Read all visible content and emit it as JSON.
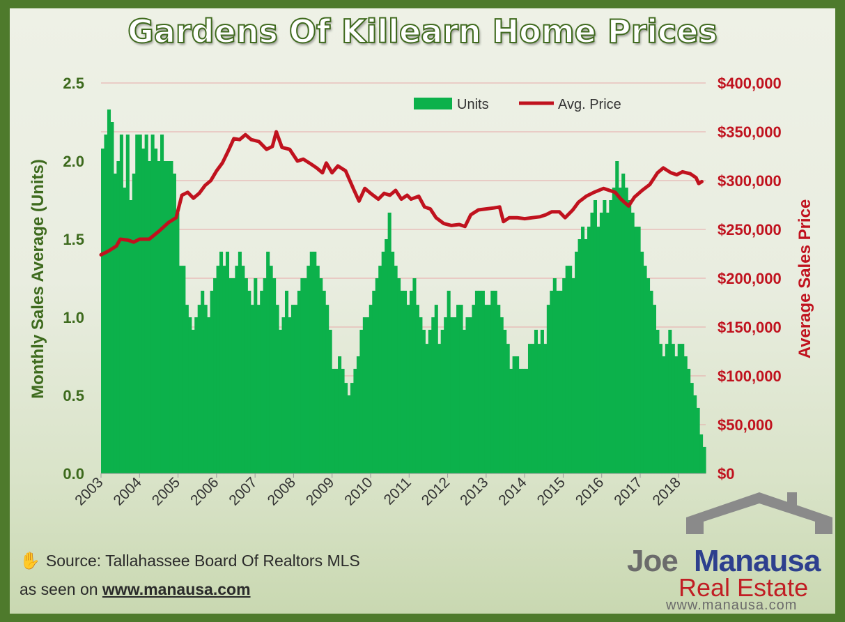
{
  "title": "Gardens Of Killearn Home Prices",
  "source_line": "Source: Tallahassee Board Of Realtors MLS",
  "seen_on_prefix": "as seen on",
  "seen_on_link": "www.manausa.com",
  "logo": {
    "joe": "Joe",
    "manausa": "Manausa",
    "real_estate": "Real Estate",
    "url": "www.manausa.com"
  },
  "colors": {
    "units": "#0cb14b",
    "price": "#c0121e",
    "left_axis": "#3d6a1d",
    "right_axis": "#c0121e",
    "frame": "#4e7a2c"
  },
  "chart_data": {
    "type": "bar+line",
    "title": "Gardens Of Killearn Home Prices",
    "ylabel_left": "Monthly Sales Average (Units)",
    "ylabel_right": "Average Sales Price",
    "y_left_lim": [
      0,
      2.5
    ],
    "y_left_ticks": [
      "0.0",
      "0.5",
      "1.0",
      "1.5",
      "2.0",
      "2.5"
    ],
    "y_right_lim": [
      0,
      400000
    ],
    "y_right_ticks": [
      "$0",
      "$50,000",
      "$100,000",
      "$150,000",
      "$200,000",
      "$250,000",
      "$300,000",
      "$350,000",
      "$400,000"
    ],
    "x_range": [
      2003.0,
      2018.7
    ],
    "x_ticks": [
      "2003",
      "2004",
      "2005",
      "2006",
      "2007",
      "2008",
      "2009",
      "2010",
      "2011",
      "2012",
      "2013",
      "2014",
      "2015",
      "2016",
      "2017",
      "2018"
    ],
    "legend": [
      "Units",
      "Avg. Price"
    ],
    "legend_position": "top",
    "series": [
      {
        "name": "Units",
        "kind": "bar",
        "values": [
          2.08,
          2.17,
          2.33,
          2.25,
          1.92,
          2.0,
          2.17,
          1.83,
          2.17,
          1.75,
          1.92,
          2.17,
          2.17,
          2.08,
          2.17,
          2.0,
          2.17,
          2.08,
          2.0,
          2.17,
          2.0,
          2.0,
          2.0,
          1.92,
          1.67,
          1.33,
          1.33,
          1.08,
          1.0,
          0.92,
          1.0,
          1.08,
          1.17,
          1.08,
          1.0,
          1.17,
          1.25,
          1.33,
          1.42,
          1.33,
          1.42,
          1.25,
          1.25,
          1.33,
          1.42,
          1.33,
          1.25,
          1.17,
          1.08,
          1.25,
          1.08,
          1.17,
          1.25,
          1.42,
          1.33,
          1.25,
          1.08,
          0.92,
          1.0,
          1.17,
          1.0,
          1.08,
          1.08,
          1.17,
          1.25,
          1.25,
          1.33,
          1.42,
          1.42,
          1.33,
          1.25,
          1.17,
          1.08,
          0.92,
          0.67,
          0.67,
          0.75,
          0.67,
          0.58,
          0.5,
          0.58,
          0.67,
          0.75,
          0.92,
          1.0,
          1.0,
          1.08,
          1.17,
          1.25,
          1.33,
          1.42,
          1.5,
          1.67,
          1.42,
          1.33,
          1.25,
          1.17,
          1.17,
          1.08,
          1.17,
          1.25,
          1.08,
          1.0,
          0.92,
          0.83,
          0.92,
          1.0,
          1.08,
          0.83,
          0.92,
          1.0,
          1.17,
          1.0,
          1.0,
          1.08,
          1.08,
          0.92,
          1.0,
          1.0,
          1.08,
          1.17,
          1.17,
          1.17,
          1.08,
          1.08,
          1.17,
          1.17,
          1.08,
          1.0,
          0.92,
          0.83,
          0.67,
          0.75,
          0.75,
          0.67,
          0.67,
          0.67,
          0.83,
          0.83,
          0.92,
          0.83,
          0.92,
          0.83,
          1.08,
          1.17,
          1.25,
          1.17,
          1.17,
          1.25,
          1.33,
          1.33,
          1.25,
          1.42,
          1.5,
          1.58,
          1.5,
          1.58,
          1.67,
          1.75,
          1.58,
          1.67,
          1.75,
          1.67,
          1.75,
          1.83,
          2.0,
          1.83,
          1.92,
          1.83,
          1.75,
          1.67,
          1.58,
          1.58,
          1.42,
          1.33,
          1.25,
          1.17,
          1.08,
          0.92,
          0.83,
          0.75,
          0.83,
          0.92,
          0.83,
          0.75,
          0.83,
          0.83,
          0.75,
          0.67,
          0.58,
          0.5,
          0.42,
          0.25,
          0.17
        ]
      },
      {
        "name": "Avg. Price",
        "kind": "line",
        "points": [
          [
            2003.0,
            224000
          ],
          [
            2003.2,
            228000
          ],
          [
            2003.4,
            233000
          ],
          [
            2003.5,
            240000
          ],
          [
            2003.7,
            239000
          ],
          [
            2003.85,
            237000
          ],
          [
            2004.0,
            240000
          ],
          [
            2004.25,
            240000
          ],
          [
            2004.5,
            248000
          ],
          [
            2004.75,
            257000
          ],
          [
            2004.95,
            262000
          ],
          [
            2005.1,
            285000
          ],
          [
            2005.25,
            288000
          ],
          [
            2005.4,
            282000
          ],
          [
            2005.55,
            287000
          ],
          [
            2005.7,
            295000
          ],
          [
            2005.85,
            300000
          ],
          [
            2006.0,
            310000
          ],
          [
            2006.15,
            318000
          ],
          [
            2006.3,
            330000
          ],
          [
            2006.45,
            343000
          ],
          [
            2006.6,
            342000
          ],
          [
            2006.75,
            347000
          ],
          [
            2006.9,
            342000
          ],
          [
            2007.1,
            340000
          ],
          [
            2007.3,
            332000
          ],
          [
            2007.45,
            335000
          ],
          [
            2007.55,
            350000
          ],
          [
            2007.7,
            334000
          ],
          [
            2007.9,
            332000
          ],
          [
            2008.1,
            320000
          ],
          [
            2008.25,
            322000
          ],
          [
            2008.45,
            317000
          ],
          [
            2008.6,
            313000
          ],
          [
            2008.75,
            308000
          ],
          [
            2008.85,
            318000
          ],
          [
            2009.0,
            308000
          ],
          [
            2009.15,
            315000
          ],
          [
            2009.35,
            310000
          ],
          [
            2009.55,
            292000
          ],
          [
            2009.7,
            279000
          ],
          [
            2009.85,
            292000
          ],
          [
            2010.0,
            287000
          ],
          [
            2010.2,
            281000
          ],
          [
            2010.35,
            287000
          ],
          [
            2010.5,
            285000
          ],
          [
            2010.65,
            290000
          ],
          [
            2010.8,
            281000
          ],
          [
            2010.95,
            285000
          ],
          [
            2011.05,
            281000
          ],
          [
            2011.25,
            284000
          ],
          [
            2011.4,
            273000
          ],
          [
            2011.55,
            271000
          ],
          [
            2011.7,
            262000
          ],
          [
            2011.9,
            256000
          ],
          [
            2012.1,
            254000
          ],
          [
            2012.3,
            255000
          ],
          [
            2012.45,
            253000
          ],
          [
            2012.6,
            265000
          ],
          [
            2012.8,
            270000
          ],
          [
            2013.0,
            271000
          ],
          [
            2013.2,
            272000
          ],
          [
            2013.35,
            273000
          ],
          [
            2013.45,
            258000
          ],
          [
            2013.6,
            262000
          ],
          [
            2013.8,
            262000
          ],
          [
            2014.0,
            261000
          ],
          [
            2014.2,
            262000
          ],
          [
            2014.4,
            263000
          ],
          [
            2014.55,
            265000
          ],
          [
            2014.7,
            268000
          ],
          [
            2014.9,
            268000
          ],
          [
            2015.05,
            262000
          ],
          [
            2015.25,
            270000
          ],
          [
            2015.4,
            278000
          ],
          [
            2015.6,
            284000
          ],
          [
            2015.8,
            288000
          ],
          [
            2016.05,
            292000
          ],
          [
            2016.2,
            290000
          ],
          [
            2016.35,
            288000
          ],
          [
            2016.5,
            281000
          ],
          [
            2016.7,
            274000
          ],
          [
            2016.85,
            283000
          ],
          [
            2017.05,
            290000
          ],
          [
            2017.25,
            296000
          ],
          [
            2017.45,
            308000
          ],
          [
            2017.6,
            313000
          ],
          [
            2017.8,
            308000
          ],
          [
            2017.95,
            306000
          ],
          [
            2018.1,
            309000
          ],
          [
            2018.3,
            307000
          ],
          [
            2018.45,
            303000
          ],
          [
            2018.52,
            297000
          ],
          [
            2018.6,
            299000
          ]
        ]
      }
    ]
  }
}
